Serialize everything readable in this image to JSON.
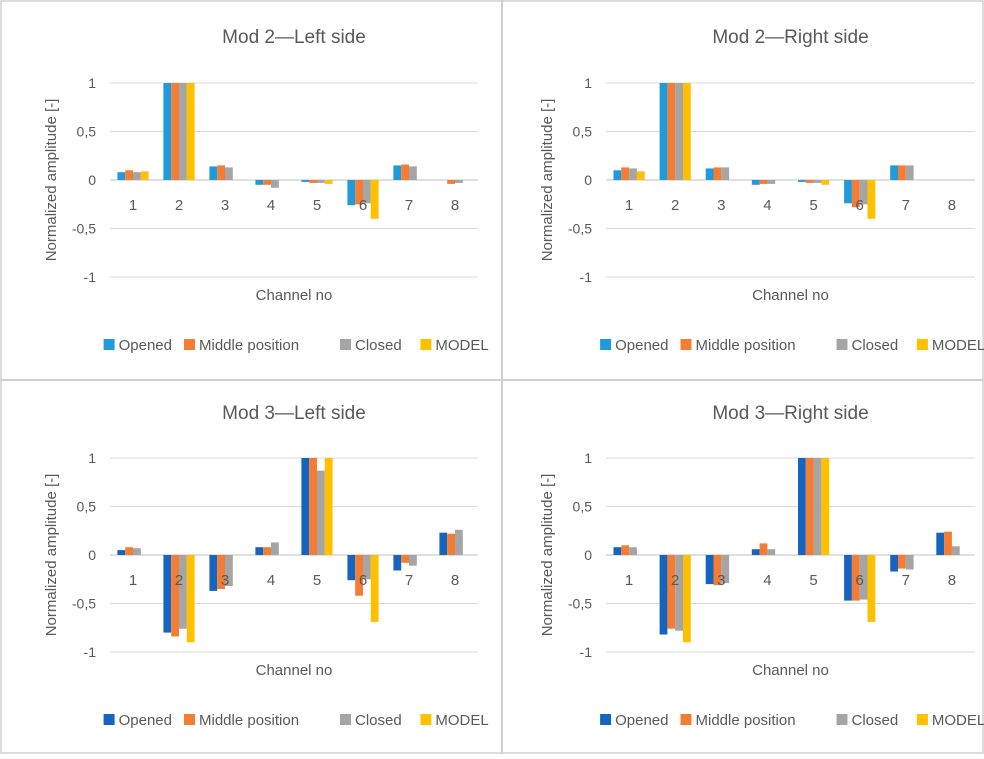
{
  "chart_data": [
    {
      "type": "bar",
      "title": "Mod 2—Left side",
      "xlabel": "Channel no",
      "ylabel": "Normalized amplitude [-]",
      "ylim": [
        -1,
        1
      ],
      "yticks": [
        "-1",
        "-0,5",
        "0",
        "0,5",
        "1"
      ],
      "categories": [
        "1",
        "2",
        "3",
        "4",
        "5",
        "6",
        "7",
        "8"
      ],
      "series": [
        {
          "name": "Opened",
          "values": [
            0.08,
            1.0,
            0.14,
            -0.05,
            -0.02,
            -0.26,
            0.15,
            0.0
          ]
        },
        {
          "name": "Middle position",
          "values": [
            0.1,
            1.0,
            0.15,
            -0.05,
            -0.03,
            -0.25,
            0.16,
            -0.04
          ]
        },
        {
          "name": "Closed",
          "values": [
            0.08,
            1.0,
            0.13,
            -0.08,
            -0.03,
            -0.24,
            0.14,
            -0.03
          ]
        },
        {
          "name": "MODEL",
          "values": [
            0.09,
            1.0,
            0.0,
            0.0,
            -0.04,
            -0.4,
            0.0,
            0.0
          ]
        }
      ],
      "grid": true,
      "legend_position": "bottom"
    },
    {
      "type": "bar",
      "title": "Mod 2—Right side",
      "xlabel": "Channel no",
      "ylabel": "Normalized amplitude [-]",
      "ylim": [
        -1,
        1
      ],
      "yticks": [
        "-1",
        "-0,5",
        "0",
        "0,5",
        "1"
      ],
      "categories": [
        "1",
        "2",
        "3",
        "4",
        "5",
        "6",
        "7",
        "8"
      ],
      "series": [
        {
          "name": "Opened",
          "values": [
            0.1,
            1.0,
            0.12,
            -0.05,
            -0.02,
            -0.24,
            0.15,
            0.0
          ]
        },
        {
          "name": "Middle position",
          "values": [
            0.13,
            1.0,
            0.13,
            -0.04,
            -0.03,
            -0.28,
            0.15,
            0.0
          ]
        },
        {
          "name": "Closed",
          "values": [
            0.12,
            1.0,
            0.13,
            -0.04,
            -0.03,
            -0.25,
            0.15,
            0.0
          ]
        },
        {
          "name": "MODEL",
          "values": [
            0.09,
            1.0,
            0.0,
            0.0,
            -0.05,
            -0.4,
            0.0,
            0.0
          ]
        }
      ],
      "grid": true,
      "legend_position": "bottom"
    },
    {
      "type": "bar",
      "title": "Mod 3—Left side",
      "xlabel": "Channel no",
      "ylabel": "Normalized amplitude [-]",
      "ylim": [
        -1,
        1
      ],
      "yticks": [
        "-1",
        "-0,5",
        "0",
        "0,5",
        "1"
      ],
      "categories": [
        "1",
        "2",
        "3",
        "4",
        "5",
        "6",
        "7",
        "8"
      ],
      "series": [
        {
          "name": "Opened",
          "values": [
            0.05,
            -0.8,
            -0.37,
            0.08,
            1.0,
            -0.26,
            -0.16,
            0.23
          ]
        },
        {
          "name": "Middle position",
          "values": [
            0.08,
            -0.84,
            -0.35,
            0.08,
            1.0,
            -0.42,
            -0.08,
            0.22
          ]
        },
        {
          "name": "Closed",
          "values": [
            0.07,
            -0.76,
            -0.32,
            0.13,
            0.87,
            -0.25,
            -0.11,
            0.26
          ]
        },
        {
          "name": "MODEL",
          "values": [
            0.0,
            -0.9,
            0.0,
            0.0,
            1.0,
            -0.69,
            0.0,
            0.0
          ]
        }
      ],
      "grid": true,
      "legend_position": "bottom"
    },
    {
      "type": "bar",
      "title": "Mod 3—Right side",
      "xlabel": "Channel no",
      "ylabel": "Normalized amplitude [-]",
      "ylim": [
        -1,
        1
      ],
      "yticks": [
        "-1",
        "-0,5",
        "0",
        "0,5",
        "1"
      ],
      "categories": [
        "1",
        "2",
        "3",
        "4",
        "5",
        "6",
        "7",
        "8"
      ],
      "series": [
        {
          "name": "Opened",
          "values": [
            0.08,
            -0.82,
            -0.3,
            0.06,
            1.0,
            -0.47,
            -0.17,
            0.23
          ]
        },
        {
          "name": "Middle position",
          "values": [
            0.1,
            -0.76,
            -0.31,
            0.12,
            1.0,
            -0.47,
            -0.14,
            0.24
          ]
        },
        {
          "name": "Closed",
          "values": [
            0.08,
            -0.78,
            -0.29,
            0.06,
            1.0,
            -0.46,
            -0.15,
            0.09
          ]
        },
        {
          "name": "MODEL",
          "values": [
            0.0,
            -0.9,
            0.0,
            0.0,
            1.0,
            -0.69,
            0.0,
            0.0
          ]
        }
      ],
      "grid": true,
      "legend_position": "bottom"
    }
  ],
  "colors": {
    "top_row": [
      "#1F9BDB",
      "#F47C33",
      "#A5A5A5",
      "#FFC000"
    ],
    "bottom_row": [
      "#1565C0",
      "#F47C33",
      "#A5A5A5",
      "#FFC000"
    ],
    "grid": "#D9D9D9",
    "panel_border": "#D0D0D0",
    "text": "#595959"
  }
}
